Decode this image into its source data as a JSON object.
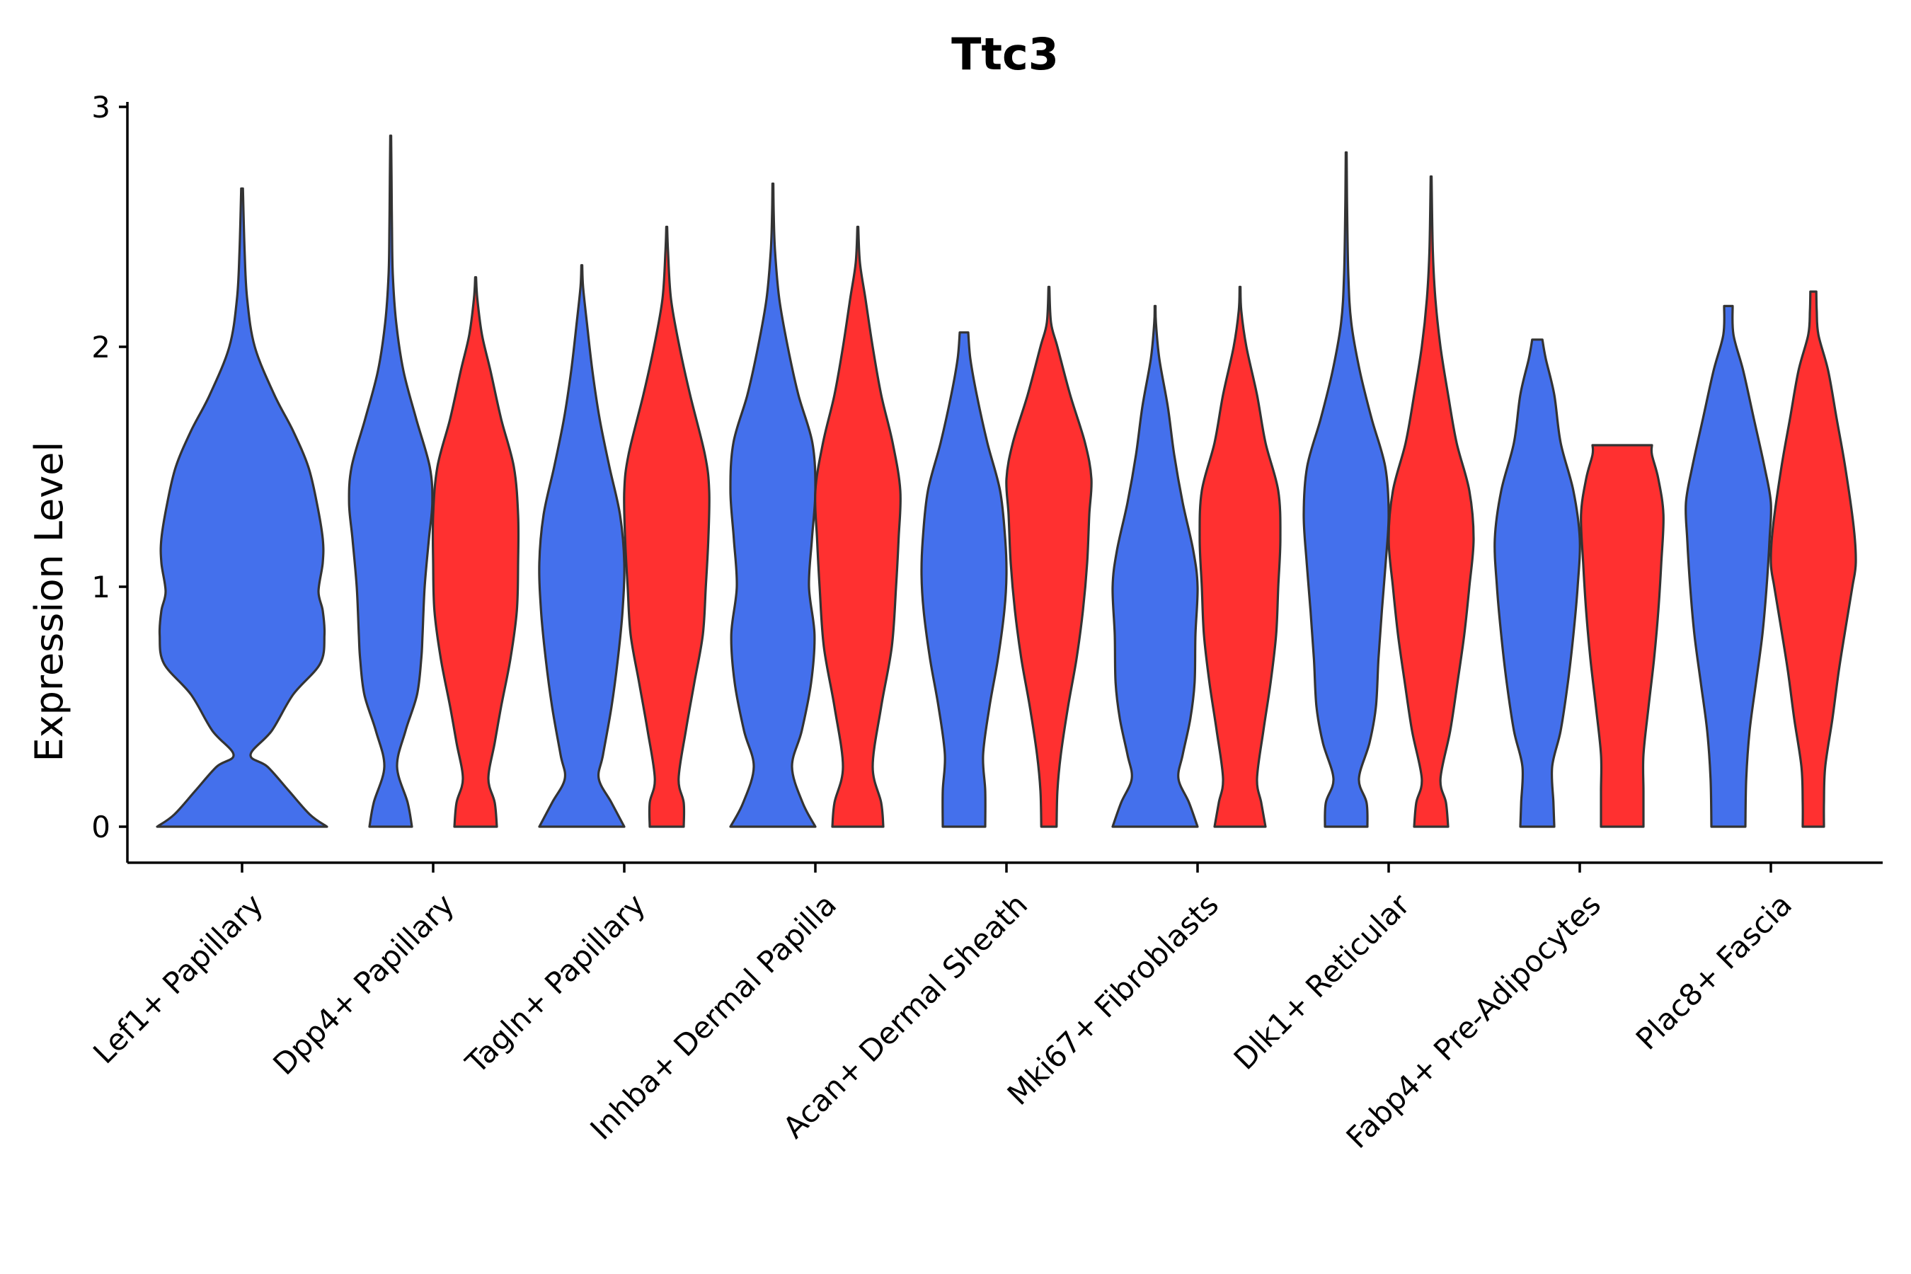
{
  "chart_data": {
    "type": "violin",
    "title": "Ttc3",
    "xlabel": "",
    "ylabel": "Expression Level",
    "ylim": [
      -0.15,
      3.05
    ],
    "yticks": [
      0,
      1,
      2,
      3
    ],
    "ytick_labels": [
      "0",
      "1",
      "2",
      "3"
    ],
    "categories": [
      "Lef1+ Papillary",
      "Dpp4+ Papillary",
      "Tagln+ Papillary",
      "Inhba+ Dermal Papilla",
      "Acan+ Dermal Sheath",
      "Mki67+ Fibroblasts",
      "Dlk1+ Reticular",
      "Fabp4+ Pre-Adipocytes",
      "Plac8+ Fascia"
    ],
    "colors": {
      "group_1": "#4470EC",
      "group_2": "#FF3030"
    },
    "violins": [
      {
        "category": 0,
        "group": 1,
        "max": 2.66,
        "profile": [
          [
            0,
            1.0
          ],
          [
            0.05,
            0.8
          ],
          [
            0.15,
            0.55
          ],
          [
            0.25,
            0.3
          ],
          [
            0.3,
            0.1
          ],
          [
            0.4,
            0.35
          ],
          [
            0.55,
            0.6
          ],
          [
            0.68,
            0.92
          ],
          [
            0.8,
            0.97
          ],
          [
            0.9,
            0.95
          ],
          [
            0.98,
            0.9
          ],
          [
            1.1,
            0.95
          ],
          [
            1.2,
            0.95
          ],
          [
            1.35,
            0.88
          ],
          [
            1.5,
            0.78
          ],
          [
            1.65,
            0.6
          ],
          [
            1.8,
            0.38
          ],
          [
            2.0,
            0.15
          ],
          [
            2.2,
            0.06
          ],
          [
            2.4,
            0.03
          ],
          [
            2.66,
            0.01
          ]
        ]
      },
      {
        "category": 1,
        "group": 1,
        "max": 2.88,
        "profile": [
          [
            0,
            0.5
          ],
          [
            0.1,
            0.4
          ],
          [
            0.25,
            0.15
          ],
          [
            0.4,
            0.35
          ],
          [
            0.55,
            0.62
          ],
          [
            0.7,
            0.72
          ],
          [
            0.8,
            0.75
          ],
          [
            1.0,
            0.8
          ],
          [
            1.2,
            0.9
          ],
          [
            1.35,
            0.98
          ],
          [
            1.5,
            0.92
          ],
          [
            1.7,
            0.6
          ],
          [
            1.9,
            0.3
          ],
          [
            2.1,
            0.13
          ],
          [
            2.3,
            0.05
          ],
          [
            2.5,
            0.03
          ],
          [
            2.7,
            0.02
          ],
          [
            2.88,
            0.01
          ]
        ]
      },
      {
        "category": 1,
        "group": 2,
        "max": 2.29,
        "profile": [
          [
            0,
            0.5
          ],
          [
            0.1,
            0.45
          ],
          [
            0.2,
            0.3
          ],
          [
            0.35,
            0.45
          ],
          [
            0.5,
            0.6
          ],
          [
            0.7,
            0.82
          ],
          [
            0.9,
            0.97
          ],
          [
            1.1,
            1.0
          ],
          [
            1.3,
            1.0
          ],
          [
            1.5,
            0.9
          ],
          [
            1.7,
            0.6
          ],
          [
            1.9,
            0.35
          ],
          [
            2.05,
            0.15
          ],
          [
            2.2,
            0.04
          ],
          [
            2.29,
            0.01
          ]
        ]
      },
      {
        "category": 2,
        "group": 1,
        "max": 2.34,
        "profile": [
          [
            0,
            1.0
          ],
          [
            0.1,
            0.7
          ],
          [
            0.2,
            0.4
          ],
          [
            0.3,
            0.5
          ],
          [
            0.5,
            0.7
          ],
          [
            0.7,
            0.85
          ],
          [
            0.9,
            0.96
          ],
          [
            1.1,
            1.0
          ],
          [
            1.3,
            0.9
          ],
          [
            1.5,
            0.65
          ],
          [
            1.7,
            0.42
          ],
          [
            1.9,
            0.25
          ],
          [
            2.1,
            0.12
          ],
          [
            2.25,
            0.03
          ],
          [
            2.34,
            0.01
          ]
        ]
      },
      {
        "category": 2,
        "group": 2,
        "max": 2.5,
        "profile": [
          [
            0,
            0.4
          ],
          [
            0.1,
            0.4
          ],
          [
            0.2,
            0.28
          ],
          [
            0.4,
            0.45
          ],
          [
            0.6,
            0.65
          ],
          [
            0.8,
            0.85
          ],
          [
            1.0,
            0.92
          ],
          [
            1.2,
            0.98
          ],
          [
            1.4,
            1.0
          ],
          [
            1.55,
            0.9
          ],
          [
            1.8,
            0.55
          ],
          [
            2.0,
            0.3
          ],
          [
            2.2,
            0.1
          ],
          [
            2.4,
            0.03
          ],
          [
            2.5,
            0.01
          ]
        ]
      },
      {
        "category": 3,
        "group": 1,
        "max": 2.68,
        "profile": [
          [
            0,
            1.0
          ],
          [
            0.1,
            0.7
          ],
          [
            0.25,
            0.45
          ],
          [
            0.4,
            0.68
          ],
          [
            0.6,
            0.9
          ],
          [
            0.8,
            0.98
          ],
          [
            1.0,
            0.85
          ],
          [
            1.2,
            0.92
          ],
          [
            1.4,
            1.0
          ],
          [
            1.6,
            0.93
          ],
          [
            1.8,
            0.6
          ],
          [
            2.0,
            0.35
          ],
          [
            2.2,
            0.15
          ],
          [
            2.4,
            0.05
          ],
          [
            2.55,
            0.02
          ],
          [
            2.68,
            0.01
          ]
        ]
      },
      {
        "category": 3,
        "group": 2,
        "max": 2.5,
        "profile": [
          [
            0,
            0.6
          ],
          [
            0.1,
            0.55
          ],
          [
            0.25,
            0.35
          ],
          [
            0.5,
            0.55
          ],
          [
            0.75,
            0.8
          ],
          [
            1.0,
            0.9
          ],
          [
            1.2,
            0.96
          ],
          [
            1.4,
            1.0
          ],
          [
            1.6,
            0.82
          ],
          [
            1.8,
            0.55
          ],
          [
            2.0,
            0.35
          ],
          [
            2.2,
            0.18
          ],
          [
            2.35,
            0.05
          ],
          [
            2.5,
            0.01
          ]
        ]
      },
      {
        "category": 4,
        "group": 1,
        "max": 2.06,
        "profile": [
          [
            0,
            0.5
          ],
          [
            0.15,
            0.5
          ],
          [
            0.3,
            0.45
          ],
          [
            0.5,
            0.6
          ],
          [
            0.7,
            0.8
          ],
          [
            0.9,
            0.95
          ],
          [
            1.05,
            1.0
          ],
          [
            1.2,
            0.97
          ],
          [
            1.4,
            0.85
          ],
          [
            1.6,
            0.55
          ],
          [
            1.8,
            0.3
          ],
          [
            1.95,
            0.15
          ],
          [
            2.06,
            0.1
          ]
        ]
      },
      {
        "category": 4,
        "group": 2,
        "max": 2.25,
        "profile": [
          [
            0,
            0.18
          ],
          [
            0.15,
            0.2
          ],
          [
            0.3,
            0.28
          ],
          [
            0.5,
            0.45
          ],
          [
            0.7,
            0.65
          ],
          [
            0.9,
            0.8
          ],
          [
            1.1,
            0.9
          ],
          [
            1.3,
            0.95
          ],
          [
            1.45,
            1.0
          ],
          [
            1.6,
            0.85
          ],
          [
            1.8,
            0.5
          ],
          [
            2.0,
            0.2
          ],
          [
            2.1,
            0.05
          ],
          [
            2.25,
            0.01
          ]
        ]
      },
      {
        "category": 5,
        "group": 1,
        "max": 2.17,
        "profile": [
          [
            0,
            1.0
          ],
          [
            0.1,
            0.8
          ],
          [
            0.2,
            0.55
          ],
          [
            0.3,
            0.65
          ],
          [
            0.45,
            0.83
          ],
          [
            0.6,
            0.93
          ],
          [
            0.8,
            0.95
          ],
          [
            1.0,
            1.0
          ],
          [
            1.15,
            0.9
          ],
          [
            1.35,
            0.65
          ],
          [
            1.55,
            0.45
          ],
          [
            1.75,
            0.3
          ],
          [
            1.95,
            0.1
          ],
          [
            2.1,
            0.02
          ],
          [
            2.17,
            0.01
          ]
        ]
      },
      {
        "category": 5,
        "group": 2,
        "max": 2.25,
        "profile": [
          [
            0,
            0.6
          ],
          [
            0.1,
            0.5
          ],
          [
            0.2,
            0.4
          ],
          [
            0.4,
            0.55
          ],
          [
            0.6,
            0.72
          ],
          [
            0.8,
            0.85
          ],
          [
            1.0,
            0.9
          ],
          [
            1.2,
            0.95
          ],
          [
            1.4,
            0.9
          ],
          [
            1.6,
            0.6
          ],
          [
            1.8,
            0.4
          ],
          [
            2.0,
            0.15
          ],
          [
            2.15,
            0.03
          ],
          [
            2.25,
            0.01
          ]
        ]
      },
      {
        "category": 6,
        "group": 1,
        "max": 2.81,
        "profile": [
          [
            0,
            0.5
          ],
          [
            0.1,
            0.48
          ],
          [
            0.2,
            0.3
          ],
          [
            0.35,
            0.55
          ],
          [
            0.5,
            0.7
          ],
          [
            0.7,
            0.76
          ],
          [
            0.9,
            0.84
          ],
          [
            1.1,
            0.93
          ],
          [
            1.3,
            1.0
          ],
          [
            1.5,
            0.92
          ],
          [
            1.7,
            0.6
          ],
          [
            1.9,
            0.32
          ],
          [
            2.1,
            0.12
          ],
          [
            2.3,
            0.05
          ],
          [
            2.6,
            0.02
          ],
          [
            2.81,
            0.01
          ]
        ]
      },
      {
        "category": 6,
        "group": 2,
        "max": 2.71,
        "profile": [
          [
            0,
            0.4
          ],
          [
            0.1,
            0.35
          ],
          [
            0.2,
            0.22
          ],
          [
            0.4,
            0.45
          ],
          [
            0.6,
            0.62
          ],
          [
            0.8,
            0.78
          ],
          [
            1.0,
            0.9
          ],
          [
            1.2,
            1.0
          ],
          [
            1.4,
            0.9
          ],
          [
            1.6,
            0.6
          ],
          [
            1.8,
            0.4
          ],
          [
            2.0,
            0.22
          ],
          [
            2.2,
            0.1
          ],
          [
            2.4,
            0.04
          ],
          [
            2.71,
            0.01
          ]
        ]
      },
      {
        "category": 7,
        "group": 1,
        "max": 2.03,
        "profile": [
          [
            0,
            0.4
          ],
          [
            0.1,
            0.38
          ],
          [
            0.25,
            0.35
          ],
          [
            0.4,
            0.55
          ],
          [
            0.6,
            0.72
          ],
          [
            0.8,
            0.85
          ],
          [
            1.0,
            0.95
          ],
          [
            1.2,
            1.0
          ],
          [
            1.4,
            0.85
          ],
          [
            1.6,
            0.55
          ],
          [
            1.8,
            0.4
          ],
          [
            1.95,
            0.2
          ],
          [
            2.03,
            0.12
          ]
        ]
      },
      {
        "category": 7,
        "group": 2,
        "max": 1.59,
        "profile": [
          [
            0,
            0.5
          ],
          [
            0.15,
            0.5
          ],
          [
            0.3,
            0.5
          ],
          [
            0.5,
            0.62
          ],
          [
            0.7,
            0.75
          ],
          [
            0.9,
            0.85
          ],
          [
            1.1,
            0.92
          ],
          [
            1.3,
            0.97
          ],
          [
            1.45,
            0.85
          ],
          [
            1.55,
            0.7
          ],
          [
            1.59,
            0.7
          ]
        ]
      },
      {
        "category": 8,
        "group": 1,
        "max": 2.17,
        "profile": [
          [
            0,
            0.4
          ],
          [
            0.2,
            0.42
          ],
          [
            0.4,
            0.5
          ],
          [
            0.6,
            0.65
          ],
          [
            0.8,
            0.8
          ],
          [
            1.0,
            0.9
          ],
          [
            1.2,
            0.97
          ],
          [
            1.35,
            1.0
          ],
          [
            1.5,
            0.85
          ],
          [
            1.7,
            0.6
          ],
          [
            1.9,
            0.35
          ],
          [
            2.05,
            0.12
          ],
          [
            2.17,
            0.1
          ]
        ]
      },
      {
        "category": 8,
        "group": 2,
        "max": 2.23,
        "profile": [
          [
            0,
            0.25
          ],
          [
            0.1,
            0.25
          ],
          [
            0.25,
            0.28
          ],
          [
            0.45,
            0.45
          ],
          [
            0.65,
            0.6
          ],
          [
            0.85,
            0.78
          ],
          [
            1.0,
            0.92
          ],
          [
            1.1,
            1.0
          ],
          [
            1.25,
            0.95
          ],
          [
            1.5,
            0.75
          ],
          [
            1.7,
            0.55
          ],
          [
            1.9,
            0.35
          ],
          [
            2.05,
            0.12
          ],
          [
            2.15,
            0.08
          ],
          [
            2.23,
            0.07
          ]
        ]
      }
    ]
  }
}
